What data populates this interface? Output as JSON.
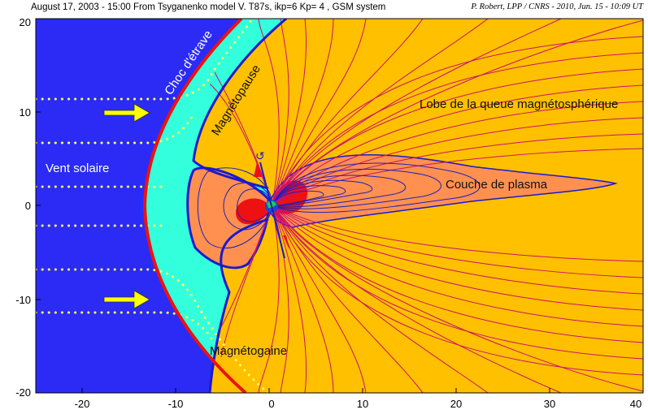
{
  "header": {
    "left": "August 17, 2003 - 15:00 From Tsyganenko model V. T87s, ikp=6 Kp= 4 , GSM system",
    "right": "P. Robert, LPP / CNRS  - 2010, Jun. 15 - 10:09 UT"
  },
  "axes": {
    "x_ticks": [
      "-20",
      "-10",
      "0",
      "10",
      "20",
      "30",
      "40"
    ],
    "y_ticks": [
      "20",
      "10",
      "0",
      "-10",
      "-20"
    ],
    "x_range": [
      -25,
      40
    ],
    "y_range": [
      -20,
      20
    ]
  },
  "labels": {
    "bow_shock": "Choc d'étrave",
    "magnetopause": "Magnétopause",
    "solar_wind": "Vent solaire",
    "tail_lobe": "Lobe de la queue magnétosphérique",
    "plasma_sheet": "Couche de plasma",
    "magnetosheath": "Magnétogaine"
  },
  "colors": {
    "solar_wind": "#2b2bf5",
    "bow_shock": "#ee1111",
    "magnetosheath": "#33ffdd",
    "magnetosphere": "#ffc000",
    "plasma_sheet": "#ff9050",
    "radiation_belt": "#ee1111",
    "field_lines": "#cc1166",
    "closed_lines": "#2020bb",
    "magnetopause": "#1a1acc",
    "arrows": "#ffff00",
    "streamlines": "#ffff66"
  },
  "icons": {
    "solar_wind_arrows": "arrow-right-icon",
    "earth": "earth-icon"
  }
}
